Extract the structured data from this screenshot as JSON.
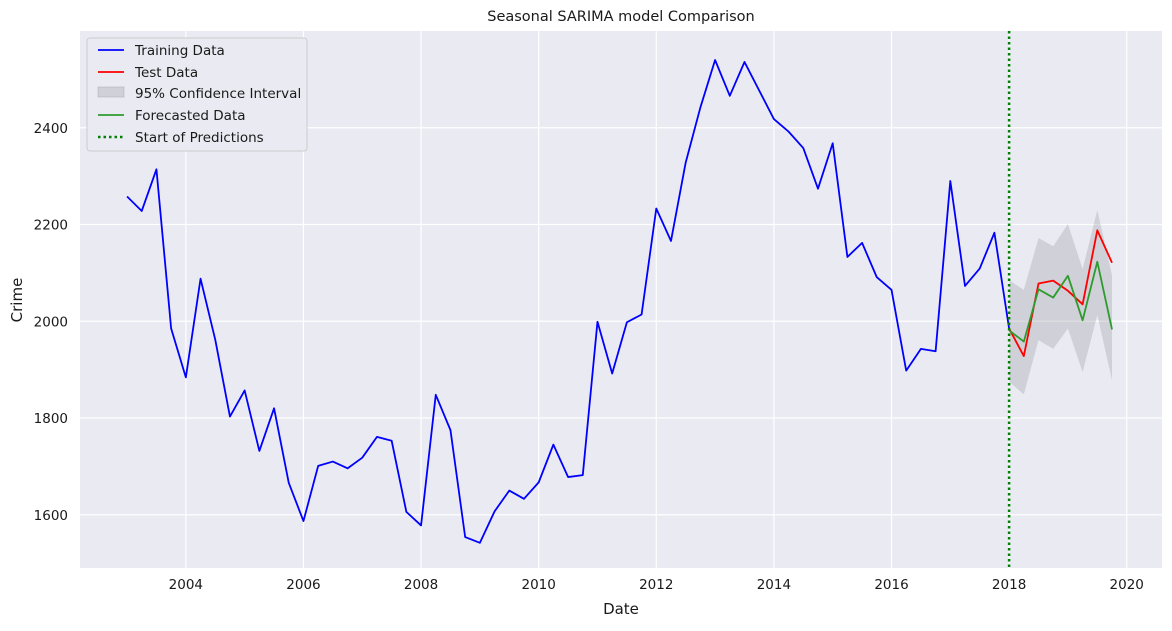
{
  "chart_data": {
    "type": "line",
    "title": "Seasonal SARIMA model Comparison",
    "xlabel": "Date",
    "ylabel": "Crime",
    "xlim": [
      2002.2,
      2020.6
    ],
    "ylim": [
      1490,
      2600
    ],
    "x_ticks": [
      2004,
      2006,
      2008,
      2010,
      2012,
      2014,
      2016,
      2018,
      2020
    ],
    "y_ticks": [
      1600,
      1800,
      2000,
      2200,
      2400
    ],
    "grid": true,
    "legend_position": "top-left",
    "series": [
      {
        "name": "Training Data",
        "color": "#0000ff",
        "style": "solid",
        "x": [
          2003.0,
          2003.25,
          2003.5,
          2003.75,
          2004.0,
          2004.25,
          2004.5,
          2004.75,
          2005.0,
          2005.25,
          2005.5,
          2005.75,
          2006.0,
          2006.25,
          2006.5,
          2006.75,
          2007.0,
          2007.25,
          2007.5,
          2007.75,
          2008.0,
          2008.25,
          2008.5,
          2008.75,
          2009.0,
          2009.25,
          2009.5,
          2009.75,
          2010.0,
          2010.25,
          2010.5,
          2010.75,
          2011.0,
          2011.25,
          2011.5,
          2011.75,
          2012.0,
          2012.25,
          2012.5,
          2012.75,
          2013.0,
          2013.25,
          2013.5,
          2013.75,
          2014.0,
          2014.25,
          2014.5,
          2014.75,
          2015.0,
          2015.25,
          2015.5,
          2015.75,
          2016.0,
          2016.25,
          2016.5,
          2016.75,
          2017.0,
          2017.25,
          2017.5,
          2017.75,
          2018.0
        ],
        "values": [
          2258,
          2228,
          2314,
          1985,
          1884,
          2088,
          1962,
          1803,
          1857,
          1732,
          1820,
          1666,
          1587,
          1701,
          1710,
          1696,
          1718,
          1761,
          1753,
          1606,
          1578,
          1848,
          1775,
          1554,
          1542,
          1607,
          1650,
          1633,
          1667,
          1745,
          1678,
          1682,
          1999,
          1892,
          1998,
          2014,
          2233,
          2166,
          2328,
          2442,
          2540,
          2466,
          2536,
          2477,
          2418,
          2392,
          2358,
          2274,
          2368,
          2133,
          2162,
          2091,
          2065,
          1898,
          1943,
          1938,
          2290,
          2073,
          2109,
          2183,
          1985
        ]
      },
      {
        "name": "Test Data",
        "color": "#ff0000",
        "style": "solid",
        "x": [
          2018.0,
          2018.25,
          2018.5,
          2018.75,
          2019.0,
          2019.25,
          2019.5,
          2019.75
        ],
        "values": [
          1985,
          1928,
          2078,
          2084,
          2063,
          2035,
          2188,
          2121
        ]
      },
      {
        "name": "Forecasted Data",
        "color": "#2e9b2e",
        "style": "solid",
        "x": [
          2018.0,
          2018.25,
          2018.5,
          2018.75,
          2019.0,
          2019.25,
          2019.5,
          2019.75
        ],
        "values": [
          1981,
          1958,
          2066,
          2049,
          2094,
          2002,
          2123,
          1983
        ]
      }
    ],
    "confidence_interval": {
      "name": "95% Confidence Interval",
      "color": "#a9a9b2",
      "x": [
        2018.0,
        2018.25,
        2018.5,
        2018.75,
        2019.0,
        2019.25,
        2019.5,
        2019.75
      ],
      "lower": [
        1875,
        1849,
        1961,
        1943,
        1985,
        1895,
        2013,
        1878
      ],
      "upper": [
        2085,
        2065,
        2172,
        2155,
        2201,
        2108,
        2230,
        2095
      ]
    },
    "vline": {
      "name": "Start of Predictions",
      "x": 2018.0,
      "color": "#008000",
      "style": "dotted"
    }
  }
}
